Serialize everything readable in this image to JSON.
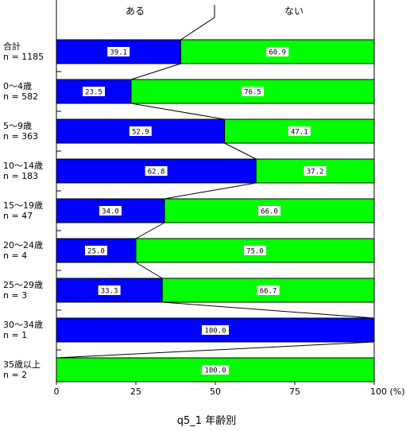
{
  "chart_data": {
    "type": "bar",
    "orientation": "horizontal",
    "stacked": true,
    "percent": true,
    "title": "q5_1 年齢別",
    "legend": [
      "ある",
      "ない"
    ],
    "x_ticks": [
      "0",
      "25",
      "50",
      "75",
      "100 (%)"
    ],
    "xlim": [
      0,
      100
    ],
    "colors": {
      "ある": "#0000ff",
      "ない": "#00ff00"
    },
    "categories": [
      {
        "label": "合計",
        "n": "n = 1185"
      },
      {
        "label": "0～4歳",
        "n": "n = 582"
      },
      {
        "label": "5～9歳",
        "n": "n = 363"
      },
      {
        "label": "10～14歳",
        "n": "n = 183"
      },
      {
        "label": "15～19歳",
        "n": "n = 47"
      },
      {
        "label": "20～24歳",
        "n": "n = 4"
      },
      {
        "label": "25～29歳",
        "n": "n = 3"
      },
      {
        "label": "30～34歳",
        "n": "n = 1"
      },
      {
        "label": "35歳以上",
        "n": "n = 2"
      }
    ],
    "series": [
      {
        "name": "ある",
        "values": [
          39.1,
          23.5,
          52.9,
          62.8,
          34.0,
          25.0,
          33.3,
          100.0,
          0.0
        ],
        "labels": [
          "39.1",
          "23.5",
          "52.9",
          "62.8",
          "34.0",
          "25.0",
          "33.3",
          "100.0",
          ""
        ]
      },
      {
        "name": "ない",
        "values": [
          60.9,
          76.5,
          47.1,
          37.2,
          66.0,
          75.0,
          66.7,
          0.0,
          100.0
        ],
        "labels": [
          "60.9",
          "76.5",
          "47.1",
          "37.2",
          "66.0",
          "75.0",
          "66.7",
          "",
          "100.0"
        ]
      }
    ]
  }
}
